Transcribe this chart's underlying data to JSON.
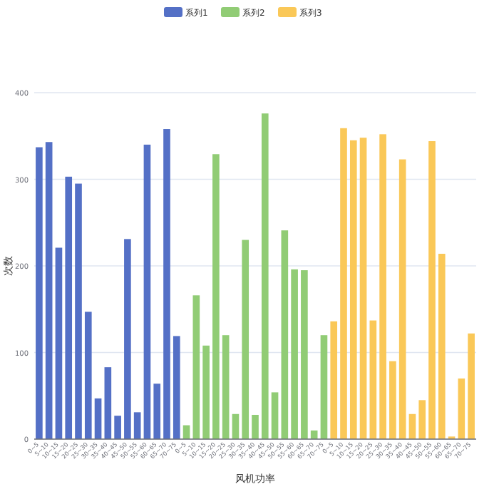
{
  "chart_data": {
    "type": "bar",
    "xlabel": "风机功率",
    "ylabel": "次数",
    "categories": [
      "0~5",
      "5~10",
      "10~15",
      "15~20",
      "20~25",
      "25~30",
      "30~35",
      "35~40",
      "40~45",
      "45~50",
      "50~55",
      "55~60",
      "60~65",
      "65~70",
      "70~75",
      "0~5",
      "5~10",
      "10~15",
      "15~20",
      "20~25",
      "25~30",
      "30~35",
      "35~40",
      "40~45",
      "45~50",
      "50~55",
      "55~60",
      "60~65",
      "65~70",
      "70~75",
      "0~5",
      "5~10",
      "10~15",
      "15~20",
      "20~25",
      "25~30",
      "30~35",
      "35~40",
      "40~45",
      "45~50",
      "50~55",
      "55~60",
      "60~65",
      "65~70",
      "70~75"
    ],
    "series": [
      {
        "name": "系列1",
        "color": "#5470c6",
        "values": [
          337,
          343,
          221,
          303,
          295,
          147,
          47,
          83,
          27,
          231,
          31,
          340,
          64,
          358,
          119,
          null,
          null,
          null,
          null,
          null,
          null,
          null,
          null,
          null,
          null,
          null,
          null,
          null,
          null,
          null,
          null,
          null,
          null,
          null,
          null,
          null,
          null,
          null,
          null,
          null,
          null,
          null,
          null,
          null,
          null
        ]
      },
      {
        "name": "系列2",
        "color": "#91cc75",
        "values": [
          null,
          null,
          null,
          null,
          null,
          null,
          null,
          null,
          null,
          null,
          null,
          null,
          null,
          null,
          null,
          16,
          166,
          108,
          329,
          120,
          29,
          230,
          28,
          376,
          54,
          241,
          196,
          195,
          10,
          120,
          null,
          null,
          null,
          null,
          null,
          null,
          null,
          null,
          null,
          null,
          null,
          null,
          null,
          null,
          null
        ]
      },
      {
        "name": "系列3",
        "color": "#fac858",
        "values": [
          null,
          null,
          null,
          null,
          null,
          null,
          null,
          null,
          null,
          null,
          null,
          null,
          null,
          null,
          null,
          null,
          null,
          null,
          null,
          null,
          null,
          null,
          null,
          null,
          null,
          null,
          null,
          null,
          null,
          null,
          136,
          359,
          345,
          348,
          137,
          352,
          90,
          323,
          29,
          45,
          344,
          214,
          3,
          70,
          122
        ]
      }
    ],
    "ylim": [
      0,
      400
    ],
    "yticks": [
      0,
      100,
      200,
      300,
      400
    ],
    "grid": "y",
    "legend": "top"
  }
}
